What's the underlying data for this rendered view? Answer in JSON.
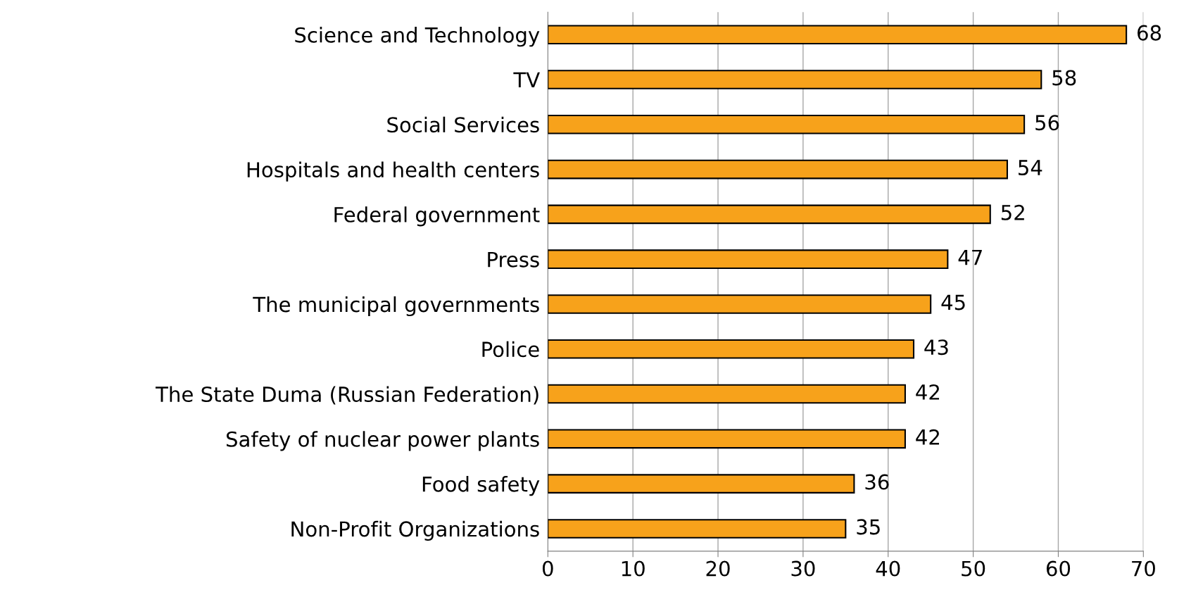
{
  "chart_data": {
    "type": "bar",
    "orientation": "horizontal",
    "categories": [
      "Science and Technology",
      "TV",
      "Social Services",
      "Hospitals and health centers",
      "Federal government",
      "Press",
      "The municipal governments",
      "Police",
      "The State Duma (Russian Federation)",
      "Safety of nuclear power plants",
      "Food safety",
      "Non-Profit Organizations"
    ],
    "values": [
      68,
      58,
      56,
      54,
      52,
      47,
      45,
      43,
      42,
      42,
      36,
      35
    ],
    "color": "#f7a21b",
    "xlim": [
      0,
      70
    ],
    "xticks": [
      0,
      10,
      20,
      30,
      40,
      50,
      60,
      70
    ],
    "grid": "x",
    "data_labels": true,
    "legend": false
  }
}
